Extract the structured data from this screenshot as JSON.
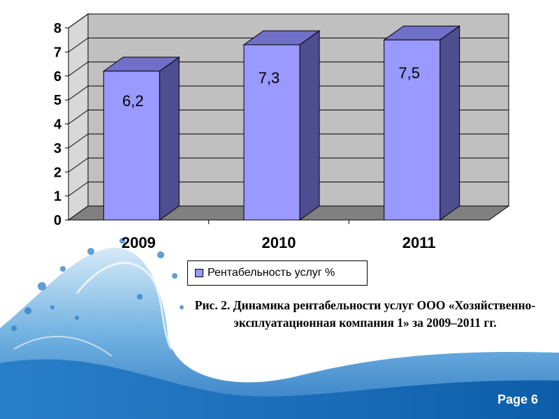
{
  "chart_data": {
    "type": "bar",
    "style": "3d-column",
    "categories": [
      "2009",
      "2010",
      "2011"
    ],
    "series": [
      {
        "name": "Рентабельность услуг %",
        "values": [
          6.2,
          7.3,
          7.5
        ],
        "labels": [
          "6,2",
          "7,3",
          "7,5"
        ]
      }
    ],
    "y_ticks": [
      "0",
      "1",
      "2",
      "3",
      "4",
      "5",
      "6",
      "7",
      "8"
    ],
    "ylim": [
      0,
      8
    ],
    "grid": true,
    "legend": "bottom",
    "colors": {
      "bar_front": "#9999ff",
      "bar_side": "#4d4d8f",
      "bar_top": "#7070c8",
      "wall": "#c0c0c0",
      "floor": "#808080"
    }
  },
  "legend": {
    "label": "Рентабельность услуг %"
  },
  "caption": "Рис. 2. Динамика рентабельности услуг ООО «Хозяйственно-эксплуатационная компания 1» за 2009–2011 гг.",
  "footer": {
    "page": "Page 6"
  }
}
